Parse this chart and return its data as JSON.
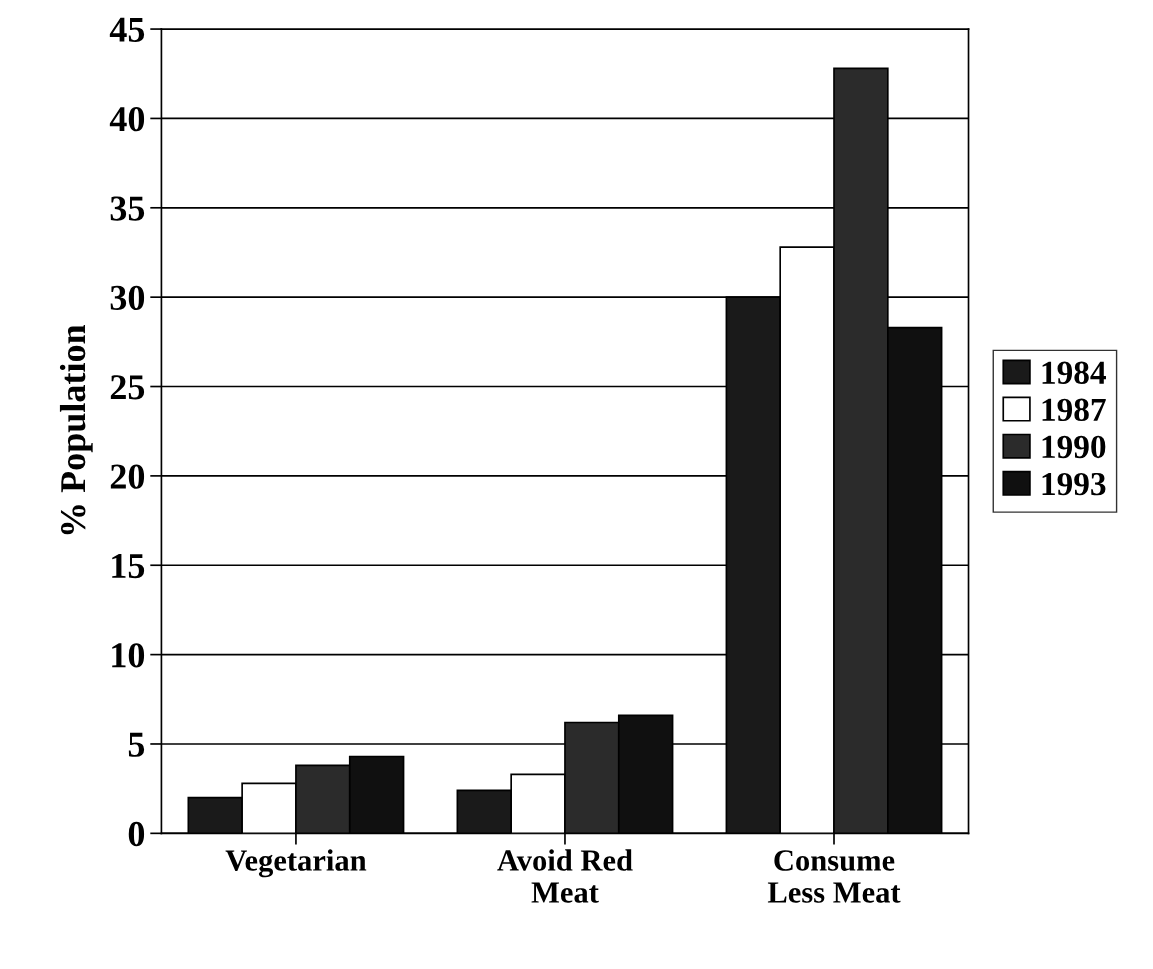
{
  "chart_data": {
    "type": "bar",
    "ylabel": "% Population",
    "categories": [
      "Vegetarian",
      "Avoid Red\nMeat",
      "Consume\nLess Meat"
    ],
    "series": [
      {
        "name": "1984",
        "color": "#1a1a1a",
        "values": [
          2.0,
          2.4,
          30.0
        ]
      },
      {
        "name": "1987",
        "color": "#ffffff",
        "values": [
          2.8,
          3.3,
          32.8
        ]
      },
      {
        "name": "1990",
        "color": "#2b2b2b",
        "values": [
          3.8,
          6.2,
          42.8
        ]
      },
      {
        "name": "1993",
        "color": "#101010",
        "values": [
          4.3,
          6.6,
          28.3
        ]
      }
    ],
    "ylim": [
      0,
      45
    ],
    "yticks": [
      0,
      5,
      10,
      15,
      20,
      25,
      30,
      35,
      40,
      45
    ],
    "grid": "y",
    "legend": "right"
  }
}
